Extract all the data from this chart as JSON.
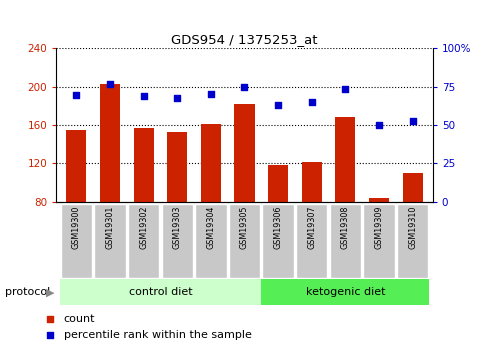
{
  "title": "GDS954 / 1375253_at",
  "samples": [
    "GSM19300",
    "GSM19301",
    "GSM19302",
    "GSM19303",
    "GSM19304",
    "GSM19305",
    "GSM19306",
    "GSM19307",
    "GSM19308",
    "GSM19309",
    "GSM19310"
  ],
  "bar_values": [
    155,
    203,
    157,
    153,
    161,
    182,
    118,
    122,
    168,
    84,
    110
  ],
  "percentile_values": [
    69.5,
    76.5,
    69.0,
    67.5,
    70.5,
    74.5,
    63.0,
    65.0,
    73.5,
    50.0,
    52.5
  ],
  "left_ylim": [
    80,
    240
  ],
  "right_ylim": [
    0,
    100
  ],
  "left_yticks": [
    80,
    120,
    160,
    200,
    240
  ],
  "right_yticks": [
    0,
    25,
    50,
    75,
    100
  ],
  "bar_color": "#cc2200",
  "dot_color": "#0000cc",
  "grid_color": "#000000",
  "tick_color_left": "#cc2200",
  "tick_color_right": "#0000cc",
  "control_diet_indices": [
    0,
    1,
    2,
    3,
    4,
    5
  ],
  "ketogenic_diet_indices": [
    6,
    7,
    8,
    9,
    10
  ],
  "control_label": "control diet",
  "ketogenic_label": "ketogenic diet",
  "protocol_label": "protocol",
  "legend_count": "count",
  "legend_percentile": "percentile rank within the sample",
  "bar_width": 0.6,
  "background_color": "#ffffff",
  "tick_bg_color": "#c8c8c8",
  "control_bg": "#ccffcc",
  "ketogenic_bg": "#55ee55",
  "fig_width": 4.89,
  "fig_height": 3.45,
  "fig_dpi": 100
}
